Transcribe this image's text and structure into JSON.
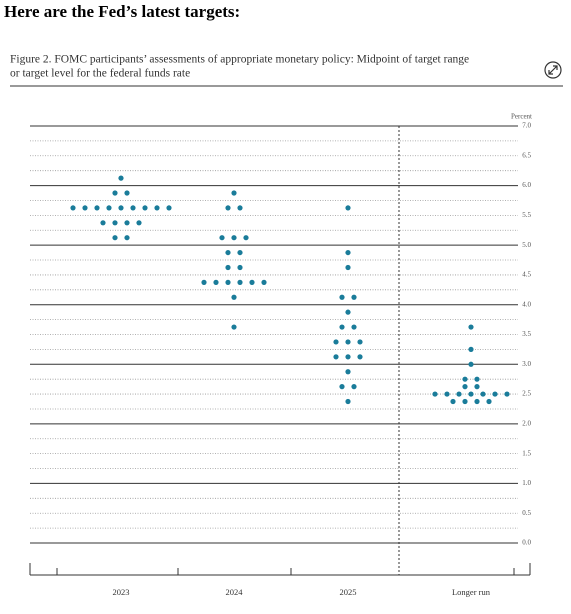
{
  "heading": "Here are the Fed’s latest targets:",
  "chart_data": {
    "type": "dot",
    "title": "Figure 2. FOMC participants’ assessments of appropriate monetary policy: Midpoint of target range",
    "subtitle": "or target level for the federal funds rate",
    "ylabel": "Percent",
    "categories": [
      "2023",
      "2024",
      "2025",
      "Longer run"
    ],
    "color": "#1a7c9a",
    "values": [
      [
        6.125,
        5.875,
        5.875,
        5.625,
        5.625,
        5.625,
        5.625,
        5.625,
        5.625,
        5.625,
        5.625,
        5.625,
        5.375,
        5.375,
        5.375,
        5.375,
        5.125,
        5.125
      ],
      [
        5.875,
        5.625,
        5.625,
        5.125,
        5.125,
        5.125,
        4.875,
        4.875,
        4.625,
        4.625,
        4.375,
        4.375,
        4.375,
        4.375,
        4.375,
        4.375,
        4.125,
        3.625
      ],
      [
        5.625,
        4.875,
        4.625,
        4.125,
        4.125,
        3.875,
        3.625,
        3.625,
        3.375,
        3.375,
        3.375,
        3.125,
        3.125,
        3.125,
        2.875,
        2.625,
        2.625,
        2.375
      ],
      [
        3.625,
        3.25,
        3.0,
        2.75,
        2.75,
        2.625,
        2.625,
        2.5,
        2.5,
        2.5,
        2.5,
        2.5,
        2.5,
        2.5,
        2.375,
        2.375,
        2.375,
        2.375
      ]
    ],
    "ylim": [
      0,
      7
    ],
    "yticks": [
      {
        "value": 0,
        "label": "0.0"
      },
      {
        "value": 0.5,
        "label": "0.5"
      },
      {
        "value": 1,
        "label": "1.0"
      },
      {
        "value": 1.5,
        "label": "1.5"
      },
      {
        "value": 2,
        "label": "2.0"
      },
      {
        "value": 2.5,
        "label": "2.5"
      },
      {
        "value": 3,
        "label": "3.0"
      },
      {
        "value": 3.5,
        "label": "3.5"
      },
      {
        "value": 4,
        "label": "4.0"
      },
      {
        "value": 4.5,
        "label": "4.5"
      },
      {
        "value": 5,
        "label": "5.0"
      },
      {
        "value": 5.5,
        "label": "5.5"
      },
      {
        "value": 6,
        "label": "6.0"
      },
      {
        "value": 6.5,
        "label": "6.5"
      },
      {
        "value": 7,
        "label": "7.0"
      }
    ],
    "grid": true
  }
}
